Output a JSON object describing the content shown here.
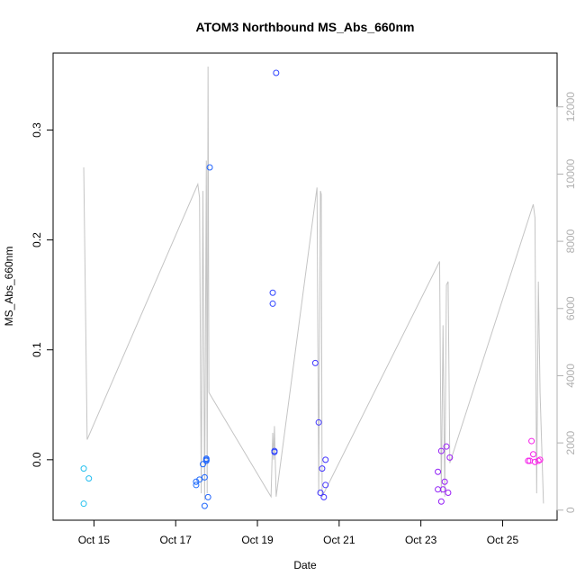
{
  "chart_data": {
    "type": "scatter",
    "title": "ATOM3 Northbound MS_Abs_660nm",
    "xlabel": "Date",
    "ylabel": "MS_Abs_660nm",
    "y2label": "",
    "grid": false,
    "legend": "none",
    "x_is_date": true,
    "xlim": [
      "2016-10-14T00:00",
      "2016-10-26T08:00"
    ],
    "ylim": [
      -0.055,
      0.37
    ],
    "y2lim": [
      -300,
      13600
    ],
    "x_ticks": [
      {
        "value": "2016-10-15",
        "label": "Oct 15"
      },
      {
        "value": "2016-10-17",
        "label": "Oct 17"
      },
      {
        "value": "2016-10-19",
        "label": "Oct 19"
      },
      {
        "value": "2016-10-21",
        "label": "Oct 21"
      },
      {
        "value": "2016-10-23",
        "label": "Oct 23"
      },
      {
        "value": "2016-10-25",
        "label": "Oct 25"
      }
    ],
    "y_ticks": [
      {
        "value": 0.0,
        "label": "0.0"
      },
      {
        "value": 0.1,
        "label": "0.1"
      },
      {
        "value": 0.2,
        "label": "0.2"
      },
      {
        "value": 0.3,
        "label": "0.3"
      }
    ],
    "y2_ticks": [
      {
        "value": 0,
        "label": "0"
      },
      {
        "value": 2000,
        "label": "2000"
      },
      {
        "value": 4000,
        "label": "4000"
      },
      {
        "value": 6000,
        "label": "6000"
      },
      {
        "value": 8000,
        "label": "8000"
      },
      {
        "value": 10000,
        "label": "10000"
      },
      {
        "value": 12000,
        "label": "12000"
      }
    ],
    "point_series": {
      "marker": "open-circle",
      "color_gradient": [
        "#22c0ee",
        "#2050ff",
        "#5a1fff",
        "#ff20e8"
      ],
      "points": [
        {
          "x": "2016-10-14T18:00",
          "y": -0.008
        },
        {
          "x": "2016-10-14T18:00",
          "y": -0.04
        },
        {
          "x": "2016-10-14T21:00",
          "y": -0.017
        },
        {
          "x": "2016-10-17T12:00",
          "y": -0.02
        },
        {
          "x": "2016-10-17T12:00",
          "y": -0.023
        },
        {
          "x": "2016-10-17T14:00",
          "y": -0.018
        },
        {
          "x": "2016-10-17T16:00",
          "y": -0.004
        },
        {
          "x": "2016-10-17T17:00",
          "y": -0.016
        },
        {
          "x": "2016-10-17T17:00",
          "y": -0.042
        },
        {
          "x": "2016-10-17T18:00",
          "y": 0.001
        },
        {
          "x": "2016-10-17T18:00",
          "y": 0.0
        },
        {
          "x": "2016-10-17T18:00",
          "y": -0.001
        },
        {
          "x": "2016-10-17T19:00",
          "y": -0.034
        },
        {
          "x": "2016-10-17T20:00",
          "y": 0.266
        },
        {
          "x": "2016-10-19T09:00",
          "y": 0.152
        },
        {
          "x": "2016-10-19T09:00",
          "y": 0.142
        },
        {
          "x": "2016-10-19T10:00",
          "y": 0.008
        },
        {
          "x": "2016-10-19T10:00",
          "y": 0.007
        },
        {
          "x": "2016-10-19T11:00",
          "y": 0.352
        },
        {
          "x": "2016-10-20T10:00",
          "y": 0.088
        },
        {
          "x": "2016-10-20T12:00",
          "y": 0.034
        },
        {
          "x": "2016-10-20T13:00",
          "y": -0.03
        },
        {
          "x": "2016-10-20T14:00",
          "y": -0.008
        },
        {
          "x": "2016-10-20T15:00",
          "y": -0.034
        },
        {
          "x": "2016-10-20T16:00",
          "y": -0.023
        },
        {
          "x": "2016-10-20T16:00",
          "y": 0.0
        },
        {
          "x": "2016-10-23T10:00",
          "y": -0.011
        },
        {
          "x": "2016-10-23T10:00",
          "y": -0.027
        },
        {
          "x": "2016-10-23T12:00",
          "y": -0.038
        },
        {
          "x": "2016-10-23T12:00",
          "y": 0.008
        },
        {
          "x": "2016-10-23T13:00",
          "y": -0.027
        },
        {
          "x": "2016-10-23T14:00",
          "y": -0.02
        },
        {
          "x": "2016-10-23T15:00",
          "y": 0.012
        },
        {
          "x": "2016-10-23T16:00",
          "y": -0.03
        },
        {
          "x": "2016-10-23T17:00",
          "y": 0.002
        },
        {
          "x": "2016-10-25T15:00",
          "y": -0.001
        },
        {
          "x": "2016-10-25T16:00",
          "y": -0.001
        },
        {
          "x": "2016-10-25T17:00",
          "y": 0.017
        },
        {
          "x": "2016-10-25T18:00",
          "y": 0.005
        },
        {
          "x": "2016-10-25T19:00",
          "y": -0.002
        },
        {
          "x": "2016-10-25T21:00",
          "y": -0.001
        },
        {
          "x": "2016-10-25T22:00",
          "y": 0.0
        }
      ]
    },
    "line_series": {
      "axis": "right",
      "color": "#c4c4c4",
      "points": [
        {
          "x": "2016-10-14T18:00",
          "y": 10200
        },
        {
          "x": "2016-10-14T20:00",
          "y": 2100
        },
        {
          "x": "2016-10-17T13:00",
          "y": 9700
        },
        {
          "x": "2016-10-17T14:00",
          "y": 9300
        },
        {
          "x": "2016-10-17T15:00",
          "y": 500
        },
        {
          "x": "2016-10-17T16:00",
          "y": 9500
        },
        {
          "x": "2016-10-17T17:00",
          "y": 300
        },
        {
          "x": "2016-10-17T18:00",
          "y": 10400
        },
        {
          "x": "2016-10-17T18:30",
          "y": 500
        },
        {
          "x": "2016-10-17T19:00",
          "y": 13200
        },
        {
          "x": "2016-10-17T19:30",
          "y": 3500
        },
        {
          "x": "2016-10-19T08:00",
          "y": 400
        },
        {
          "x": "2016-10-19T09:00",
          "y": 2300
        },
        {
          "x": "2016-10-19T09:30",
          "y": 1500
        },
        {
          "x": "2016-10-19T10:00",
          "y": 2500
        },
        {
          "x": "2016-10-19T11:00",
          "y": 400
        },
        {
          "x": "2016-10-20T11:00",
          "y": 9600
        },
        {
          "x": "2016-10-20T12:00",
          "y": 500
        },
        {
          "x": "2016-10-20T13:00",
          "y": 9500
        },
        {
          "x": "2016-10-20T13:30",
          "y": 9400
        },
        {
          "x": "2016-10-20T14:00",
          "y": 400
        },
        {
          "x": "2016-10-23T11:00",
          "y": 7400
        },
        {
          "x": "2016-10-23T12:00",
          "y": 500
        },
        {
          "x": "2016-10-23T13:00",
          "y": 5500
        },
        {
          "x": "2016-10-23T14:00",
          "y": 400
        },
        {
          "x": "2016-10-23T15:00",
          "y": 6700
        },
        {
          "x": "2016-10-23T16:00",
          "y": 6800
        },
        {
          "x": "2016-10-23T17:00",
          "y": 1400
        },
        {
          "x": "2016-10-25T18:00",
          "y": 9100
        },
        {
          "x": "2016-10-25T19:00",
          "y": 8700
        },
        {
          "x": "2016-10-25T20:00",
          "y": 500
        },
        {
          "x": "2016-10-25T21:00",
          "y": 6800
        },
        {
          "x": "2016-10-25T22:00",
          "y": 3500
        },
        {
          "x": "2016-10-26T00:00",
          "y": 200
        }
      ]
    }
  }
}
